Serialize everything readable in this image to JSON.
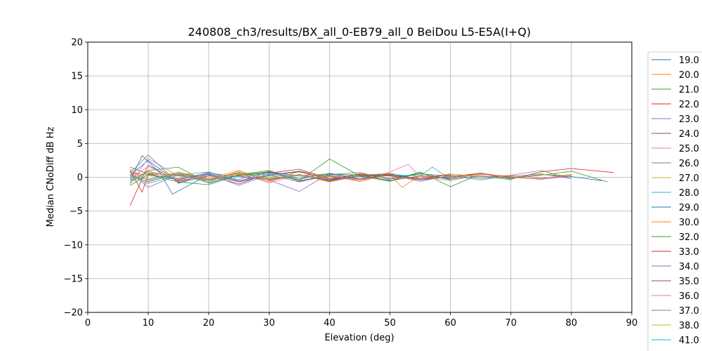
{
  "chart_data": {
    "type": "line",
    "title": "240808_ch3/results/BX_all_0-EB79_all_0 BeiDou L5-E5A(I+Q)",
    "xlabel": "Elevation (deg)",
    "ylabel": "Median CNoDiff dB Hz",
    "xlim": [
      0,
      90
    ],
    "ylim": [
      -20,
      20
    ],
    "xticks": [
      "0",
      "10",
      "20",
      "30",
      "40",
      "50",
      "60",
      "70",
      "80",
      "90"
    ],
    "yticks": [
      "20",
      "15",
      "10",
      "5",
      "0",
      "−5",
      "−10",
      "−15",
      "−20"
    ],
    "grid": true,
    "legend_position": "right, outside plot, clipped at bottom",
    "series": [
      {
        "name": "19.0",
        "color": "#1f77b4",
        "x": [
          7,
          10,
          15,
          20,
          25,
          30,
          35,
          40,
          45,
          50,
          55,
          60,
          65,
          70,
          75,
          80,
          85
        ],
        "y": [
          0.3,
          2.5,
          -0.8,
          0.5,
          -0.6,
          0.8,
          0.2,
          -0.4,
          0.5,
          -0.2,
          0.6,
          -0.3,
          0.2,
          -0.1,
          0.4,
          0.1,
          -0.5
        ]
      },
      {
        "name": "20.0",
        "color": "#ff7f0e",
        "x": [
          7,
          10,
          15,
          20,
          25,
          30,
          35,
          40,
          45,
          50,
          55,
          60,
          65,
          70,
          75,
          80
        ],
        "y": [
          1.2,
          -0.5,
          0.8,
          -0.3,
          0.5,
          -0.7,
          0.9,
          0.1,
          -0.4,
          0.3,
          -0.2,
          0.5,
          0.0,
          0.3,
          -0.2,
          0.4
        ]
      },
      {
        "name": "21.0",
        "color": "#2ca02c",
        "x": [
          7,
          10,
          15,
          20,
          25,
          30,
          35,
          40,
          45,
          50,
          55,
          60,
          65,
          70,
          75,
          80,
          86
        ],
        "y": [
          -0.8,
          1.0,
          1.5,
          -0.9,
          0.4,
          1.0,
          -0.5,
          2.7,
          0.2,
          -0.6,
          0.8,
          -1.4,
          0.5,
          -0.2,
          0.3,
          0.9,
          -0.7
        ]
      },
      {
        "name": "22.0",
        "color": "#d62728",
        "x": [
          7,
          10,
          15,
          20,
          25,
          30,
          35,
          40,
          45,
          50,
          55,
          60,
          65,
          70,
          75,
          80,
          87
        ],
        "y": [
          -4.2,
          1.8,
          -0.6,
          0.3,
          -1.0,
          0.6,
          1.2,
          -0.3,
          0.5,
          0.2,
          -0.4,
          0.1,
          0.6,
          -0.3,
          0.8,
          1.3,
          0.7
        ]
      },
      {
        "name": "23.0",
        "color": "#9467bd",
        "x": [
          7,
          10,
          15,
          20,
          25,
          30,
          35,
          40,
          45,
          50,
          55,
          60,
          65,
          70,
          75,
          80
        ],
        "y": [
          0.9,
          -1.5,
          0.4,
          -0.8,
          0.2,
          -0.4,
          -2.1,
          0.6,
          -0.3,
          0.4,
          -0.6,
          0.3,
          -0.2,
          0.1,
          0.5,
          -0.2
        ]
      },
      {
        "name": "24.0",
        "color": "#8c564b",
        "x": [
          7,
          10,
          15,
          20,
          25,
          30,
          35,
          40,
          45,
          50,
          55,
          60,
          65,
          70,
          75,
          80
        ],
        "y": [
          1.5,
          0.5,
          -0.4,
          0.7,
          -0.5,
          0.3,
          0.8,
          -0.2,
          0.4,
          -0.5,
          0.2,
          -0.1,
          0.6,
          0.0,
          -0.3,
          0.2
        ]
      },
      {
        "name": "25.0",
        "color": "#e377c2",
        "x": [
          7,
          10,
          15,
          20,
          25,
          30,
          35,
          40,
          45,
          50,
          53,
          55,
          60,
          65,
          70,
          75,
          80
        ],
        "y": [
          -1.0,
          2.8,
          0.2,
          -0.4,
          0.6,
          -0.8,
          0.3,
          0.5,
          -0.6,
          0.8,
          1.9,
          0.1,
          -0.5,
          0.4,
          0.2,
          -0.1,
          0.3
        ]
      },
      {
        "name": "26.0",
        "color": "#7f7f7f",
        "x": [
          7,
          10,
          15,
          20,
          25,
          30,
          35,
          40,
          45,
          50,
          55,
          60,
          65,
          70,
          75,
          80
        ],
        "y": [
          0.6,
          3.3,
          -0.9,
          0.2,
          -0.3,
          0.9,
          -0.6,
          0.4,
          0.7,
          -0.3,
          0.5,
          0.2,
          -0.4,
          0.3,
          1.0,
          -0.2
        ]
      },
      {
        "name": "27.0",
        "color": "#bcbd22",
        "x": [
          7,
          10,
          15,
          20,
          25,
          30,
          35,
          40,
          45,
          50,
          55,
          60,
          65,
          70,
          75,
          80
        ],
        "y": [
          -0.3,
          0.7,
          0.5,
          -0.6,
          0.9,
          -0.2,
          0.4,
          -0.7,
          0.3,
          0.6,
          -0.4,
          0.5,
          0.1,
          -0.2,
          0.4,
          0.3
        ]
      },
      {
        "name": "28.0",
        "color": "#17becf",
        "x": [
          7,
          10,
          15,
          20,
          25,
          30,
          35,
          40,
          45,
          50,
          55,
          57,
          60,
          65,
          70
        ],
        "y": [
          0.1,
          -0.9,
          0.3,
          0.8,
          -0.5,
          0.2,
          -0.3,
          0.6,
          -0.2,
          0.4,
          0.2,
          1.5,
          -0.3,
          0.2,
          -0.4
        ]
      },
      {
        "name": "29.0",
        "color": "#1f77b4",
        "x": [
          7,
          9,
          12,
          14,
          20,
          25,
          30,
          35,
          40,
          45,
          50,
          55,
          60
        ],
        "y": [
          -0.5,
          3.2,
          0.6,
          -2.5,
          0.4,
          -0.7,
          0.3,
          0.9,
          -0.4,
          0.2,
          0.5,
          -0.3,
          0.1
        ]
      },
      {
        "name": "30.0",
        "color": "#ff7f0e",
        "x": [
          7,
          10,
          15,
          20,
          25,
          30,
          35,
          40,
          45,
          50,
          52,
          55,
          60,
          65,
          70
        ],
        "y": [
          0.8,
          -0.4,
          0.6,
          -0.2,
          1.0,
          -0.5,
          0.3,
          0.2,
          -0.6,
          0.4,
          -1.5,
          0.3,
          -0.2,
          0.5,
          0.1
        ]
      },
      {
        "name": "32.0",
        "color": "#2ca02c",
        "x": [
          7,
          10,
          15,
          20,
          25,
          30,
          35,
          40,
          45,
          50,
          55,
          60
        ],
        "y": [
          -1.2,
          0.4,
          -0.7,
          -1.1,
          0.3,
          0.7,
          -0.2,
          0.5,
          0.3,
          -0.5,
          0.6,
          -0.4
        ]
      },
      {
        "name": "33.0",
        "color": "#d62728",
        "x": [
          7,
          9,
          10,
          15,
          20,
          25,
          30,
          35,
          40,
          45,
          50,
          55,
          60
        ],
        "y": [
          1.0,
          -2.2,
          0.5,
          0.3,
          -0.4,
          0.7,
          -0.3,
          0.4,
          -0.6,
          0.2,
          0.3,
          -0.2,
          0.4
        ]
      },
      {
        "name": "34.0",
        "color": "#9467bd",
        "x": [
          7,
          10,
          15,
          20,
          25,
          30,
          35,
          40,
          45,
          50
        ],
        "y": [
          -0.6,
          0.9,
          -0.3,
          0.5,
          -1.2,
          0.4,
          -0.7,
          0.3,
          0.1,
          -0.4
        ]
      },
      {
        "name": "35.0",
        "color": "#8c564b",
        "x": [
          7,
          10,
          15,
          20,
          25,
          30,
          35,
          40,
          45,
          50
        ],
        "y": [
          0.4,
          -0.7,
          0.6,
          -0.4,
          0.3,
          0.8,
          -0.5,
          0.2,
          -0.3,
          0.5
        ]
      },
      {
        "name": "36.0",
        "color": "#e377c2",
        "x": [
          7,
          10,
          15,
          20,
          25,
          30,
          35,
          40
        ],
        "y": [
          -0.2,
          1.6,
          -0.5,
          0.3,
          -0.6,
          0.5,
          0.2,
          -0.3
        ]
      },
      {
        "name": "37.0",
        "color": "#7f7f7f",
        "x": [
          7,
          10,
          15,
          20,
          25,
          30,
          35,
          40,
          45
        ],
        "y": [
          0.7,
          0.3,
          -0.2,
          0.6,
          0.1,
          -0.4,
          0.4,
          -0.5,
          0.2
        ]
      },
      {
        "name": "38.0",
        "color": "#bcbd22",
        "x": [
          7,
          10,
          15,
          20,
          25,
          30,
          35,
          40
        ],
        "y": [
          -0.4,
          0.6,
          0.2,
          -0.3,
          0.5,
          -0.1,
          0.3,
          0.0
        ]
      },
      {
        "name": "41.0",
        "color": "#17becf",
        "x": [
          7,
          10,
          15,
          20,
          25,
          30,
          35
        ],
        "y": [
          0.2,
          -0.3,
          0.4,
          -0.6,
          0.2,
          0.5,
          -0.2
        ]
      }
    ]
  }
}
